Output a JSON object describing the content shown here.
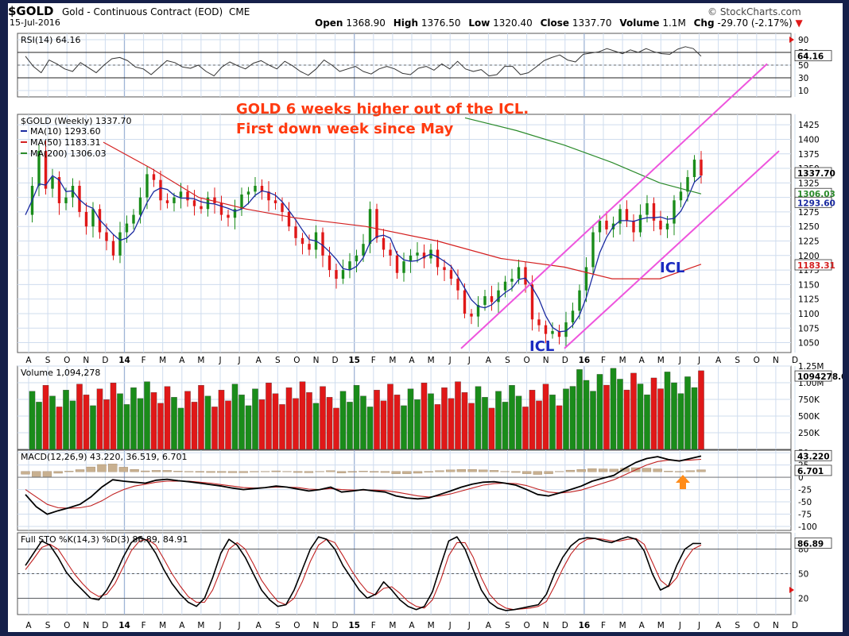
{
  "header": {
    "symbol": "$GOLD",
    "name": "Gold - Continuous Contract (EOD)",
    "exchange": "CME",
    "date": "15-Jul-2016",
    "source": "© StockCharts.com",
    "open_label": "Open",
    "open": "1368.90",
    "high_label": "High",
    "high": "1376.50",
    "low_label": "Low",
    "low": "1320.40",
    "close_label": "Close",
    "close": "1337.70",
    "volume_label": "Volume",
    "volume": "1.1M",
    "chg_label": "Chg",
    "chg": "-29.70 (-2.17%)"
  },
  "annotations": {
    "line1": "GOLD  6 weeks higher out of the ICL.",
    "line2": "First down week since May",
    "icl_left": "ICL",
    "icl_right": "ICL"
  },
  "colors": {
    "up": "#1a8c1a",
    "down": "#e01818",
    "ma10": "#1a2aa0",
    "ma50": "#d42020",
    "ma200": "#2a8a2a",
    "channel": "#ee55dd",
    "annotation": "#ff3a10",
    "icl": "#1a2ac0",
    "arrow": "#ff8c1a",
    "hist": "#c8b090"
  },
  "chart_data": [
    {
      "type": "line",
      "panel": "rsi",
      "legend": "RSI(14) 64.16",
      "ylim": [
        0,
        100
      ],
      "yticks": [
        "90",
        "70",
        "50",
        "30",
        "10"
      ],
      "reference_levels": [
        70,
        30
      ],
      "last_value_label": "64.16",
      "series": [
        {
          "name": "RSI(14)",
          "values": [
            64,
            48,
            38,
            58,
            52,
            44,
            40,
            54,
            46,
            38,
            50,
            60,
            62,
            57,
            47,
            44,
            35,
            46,
            57,
            54,
            47,
            45,
            50,
            40,
            33,
            47,
            55,
            49,
            44,
            53,
            57,
            50,
            44,
            56,
            49,
            40,
            34,
            44,
            58,
            50,
            40,
            44,
            48,
            40,
            36,
            44,
            48,
            44,
            37,
            35,
            45,
            48,
            42,
            52,
            44,
            56,
            44,
            40,
            43,
            33,
            35,
            48,
            48,
            35,
            38,
            47,
            57,
            62,
            66,
            58,
            55,
            67,
            69,
            71,
            76,
            72,
            68,
            74,
            70,
            76,
            71,
            68,
            67,
            75,
            79,
            76,
            64
          ]
        }
      ]
    },
    {
      "type": "candlestick",
      "panel": "price",
      "legend": "$GOLD (Weekly) 1337.70",
      "ylim": [
        1033,
        1443
      ],
      "yticks": [
        "1425",
        "1400",
        "1375",
        "1350",
        "1325",
        "1300",
        "1275",
        "1250",
        "1225",
        "1200",
        "1175",
        "1150",
        "1125",
        "1100",
        "1075",
        "1050"
      ],
      "x_ticks": [
        "A",
        "S",
        "O",
        "N",
        "D",
        "14",
        "F",
        "M",
        "A",
        "M",
        "J",
        "J",
        "A",
        "S",
        "O",
        "N",
        "D",
        "15",
        "F",
        "M",
        "A",
        "M",
        "J",
        "J",
        "A",
        "S",
        "O",
        "N",
        "D",
        "16",
        "F",
        "M",
        "A",
        "M",
        "J",
        "J",
        "A",
        "S",
        "O",
        "N",
        "D"
      ],
      "closes": [
        1270,
        1320,
        1380,
        1315,
        1335,
        1290,
        1300,
        1320,
        1275,
        1250,
        1280,
        1240,
        1225,
        1200,
        1240,
        1255,
        1270,
        1300,
        1340,
        1330,
        1295,
        1290,
        1300,
        1310,
        1295,
        1285,
        1280,
        1300,
        1290,
        1270,
        1265,
        1280,
        1305,
        1310,
        1320,
        1310,
        1295,
        1290,
        1275,
        1250,
        1230,
        1220,
        1210,
        1240,
        1200,
        1175,
        1160,
        1175,
        1190,
        1200,
        1220,
        1280,
        1230,
        1210,
        1200,
        1170,
        1190,
        1200,
        1205,
        1195,
        1210,
        1180,
        1175,
        1160,
        1140,
        1100,
        1095,
        1115,
        1130,
        1120,
        1140,
        1155,
        1160,
        1180,
        1150,
        1090,
        1080,
        1065,
        1070,
        1060,
        1085,
        1105,
        1140,
        1180,
        1240,
        1260,
        1245,
        1255,
        1280,
        1260,
        1240,
        1270,
        1290,
        1260,
        1245,
        1255,
        1295,
        1310,
        1335,
        1365,
        1337.7
      ],
      "ma_series": [
        {
          "name": "MA(10)",
          "value": "1293.60"
        },
        {
          "name": "MA(50)",
          "value": "1183.31"
        },
        {
          "name": "MA(200)",
          "value": "1306.03"
        }
      ],
      "last_value_labels": [
        "1337.70",
        "1306.03",
        "1293.60",
        "1183.31"
      ]
    },
    {
      "type": "bar",
      "panel": "volume",
      "legend": "Volume 1,094,278",
      "ylim": [
        0,
        1250000
      ],
      "yticks": [
        "1.25M",
        "1.00M",
        "750K",
        "500K",
        "250K"
      ],
      "last_value_label": "1094278.0"
    },
    {
      "type": "line",
      "panel": "macd",
      "legend": "MACD(12,26,9) 43.220, 36.519, 6.701",
      "ylim": [
        -108,
        55
      ],
      "yticks": [
        "50",
        "25",
        "0",
        "-25",
        "-50",
        "-75",
        "-100"
      ],
      "series": [
        {
          "name": "MACD",
          "values": [
            -35,
            -60,
            -75,
            -68,
            -62,
            -55,
            -40,
            -20,
            -5,
            -8,
            -10,
            -12,
            -6,
            -4,
            -7,
            -9,
            -12,
            -15,
            -18,
            -22,
            -25,
            -23,
            -21,
            -18,
            -20,
            -24,
            -28,
            -25,
            -20,
            -30,
            -28,
            -25,
            -28,
            -30,
            -38,
            -42,
            -44,
            -42,
            -35,
            -28,
            -20,
            -14,
            -10,
            -9,
            -12,
            -16,
            -25,
            -35,
            -38,
            -32,
            -25,
            -18,
            -8,
            -2,
            4,
            18,
            30,
            38,
            42,
            36,
            33,
            38,
            43
          ]
        },
        {
          "name": "Signal",
          "values": [
            -25,
            -40,
            -55,
            -62,
            -63,
            -62,
            -58,
            -48,
            -35,
            -25,
            -18,
            -14,
            -10,
            -8,
            -8,
            -8,
            -10,
            -12,
            -15,
            -18,
            -21,
            -22,
            -21,
            -20,
            -20,
            -21,
            -24,
            -25,
            -23,
            -25,
            -26,
            -26,
            -26,
            -27,
            -30,
            -34,
            -38,
            -40,
            -38,
            -34,
            -28,
            -22,
            -16,
            -13,
            -12,
            -13,
            -17,
            -24,
            -30,
            -32,
            -30,
            -26,
            -19,
            -12,
            -5,
            5,
            15,
            25,
            32,
            35,
            34,
            35,
            36.519
          ]
        }
      ],
      "last_value_labels": [
        "43.220",
        "6.701"
      ]
    },
    {
      "type": "line",
      "panel": "stochastics",
      "legend": "Full STO %K(14,3) %D(3) 86.89, 84.91",
      "ylim": [
        0,
        100
      ],
      "yticks": [
        "80",
        "50",
        "20"
      ],
      "reference_levels": [
        80,
        50,
        20
      ],
      "series": [
        {
          "name": "%K",
          "values": [
            60,
            75,
            90,
            85,
            70,
            52,
            40,
            30,
            20,
            18,
            30,
            48,
            70,
            88,
            95,
            90,
            75,
            55,
            38,
            25,
            15,
            10,
            20,
            45,
            75,
            92,
            85,
            70,
            50,
            30,
            18,
            10,
            12,
            30,
            55,
            80,
            95,
            92,
            80,
            60,
            45,
            30,
            20,
            25,
            40,
            30,
            18,
            10,
            6,
            10,
            28,
            60,
            90,
            95,
            80,
            55,
            30,
            15,
            8,
            5,
            6,
            8,
            10,
            12,
            25,
            50,
            70,
            84,
            92,
            94,
            93,
            90,
            88,
            92,
            95,
            92,
            78,
            50,
            30,
            35,
            60,
            80,
            87,
            86.89
          ]
        },
        {
          "name": "%D",
          "values": [
            55,
            68,
            82,
            86,
            80,
            65,
            50,
            38,
            28,
            22,
            25,
            38,
            58,
            78,
            90,
            92,
            85,
            68,
            50,
            35,
            22,
            15,
            15,
            30,
            55,
            80,
            88,
            80,
            62,
            42,
            28,
            16,
            12,
            20,
            40,
            65,
            85,
            92,
            88,
            72,
            55,
            40,
            28,
            24,
            32,
            34,
            26,
            16,
            10,
            8,
            18,
            42,
            72,
            88,
            88,
            70,
            45,
            25,
            14,
            8,
            6,
            7,
            8,
            10,
            16,
            35,
            56,
            74,
            86,
            92,
            93,
            92,
            90,
            90,
            92,
            93,
            86,
            64,
            42,
            34,
            45,
            66,
            80,
            84.91
          ]
        }
      ],
      "last_value_label": "86.89"
    }
  ]
}
